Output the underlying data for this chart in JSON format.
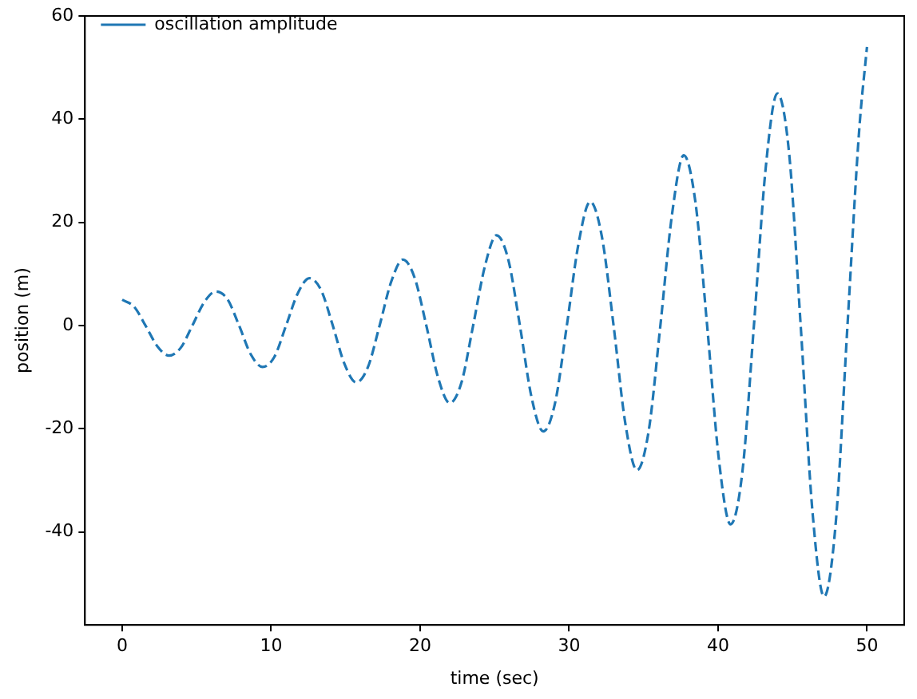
{
  "chart_data": {
    "type": "line",
    "xlabel": "time (sec)",
    "ylabel": "position (m)",
    "x": [
      0,
      0.79,
      1.57,
      2.36,
      3.14,
      3.93,
      4.71,
      5.5,
      6.28,
      7.07,
      7.85,
      8.64,
      9.42,
      10.21,
      11,
      11.78,
      12.57,
      13.35,
      14.14,
      14.92,
      15.71,
      16.49,
      17.28,
      18.06,
      18.85,
      19.63,
      20.42,
      21.21,
      21.99,
      22.78,
      23.56,
      24.35,
      25.13,
      25.92,
      26.7,
      27.49,
      28.27,
      29.06,
      29.85,
      30.63,
      31.42,
      32.2,
      32.99,
      33.77,
      34.56,
      35.34,
      36.13,
      36.91,
      37.7,
      38.48,
      39.27,
      40.06,
      40.84,
      41.63,
      42.41,
      43.2,
      43.98,
      44.77,
      45.55,
      46.34,
      47.12,
      47.91,
      48.69,
      49.48,
      50
    ],
    "series": [
      {
        "name": "oscillation amplitude",
        "color": "#1f77b4",
        "line_style": "dashed",
        "marker": "none",
        "values": [
          5,
          3.7,
          0,
          -4,
          -5.8,
          -4.3,
          0,
          4.5,
          6.6,
          5.1,
          0,
          -5.6,
          -8,
          -6.1,
          0,
          6.2,
          9.2,
          6.9,
          0,
          -7.4,
          -11,
          -8.1,
          0,
          8.5,
          12.8,
          9.3,
          0,
          -10.1,
          -15,
          -11,
          0,
          11.5,
          17.5,
          12.8,
          0,
          -14,
          -20.5,
          -15,
          0,
          15.8,
          24,
          17.3,
          0,
          -18.8,
          -28,
          -20.5,
          0,
          21.5,
          33,
          24,
          0,
          -26,
          -38.5,
          -28.5,
          0,
          30.5,
          45,
          33.5,
          0,
          -36,
          -52.5,
          -38,
          0,
          38,
          54
        ]
      }
    ],
    "xlim": [
      -2.5,
      52.5
    ],
    "ylim": [
      -58,
      60
    ],
    "xticks": [
      0,
      10,
      20,
      30,
      40,
      50
    ],
    "yticks": [
      -40,
      -20,
      0,
      20,
      40,
      60
    ],
    "grid": false,
    "legend": "top left"
  }
}
